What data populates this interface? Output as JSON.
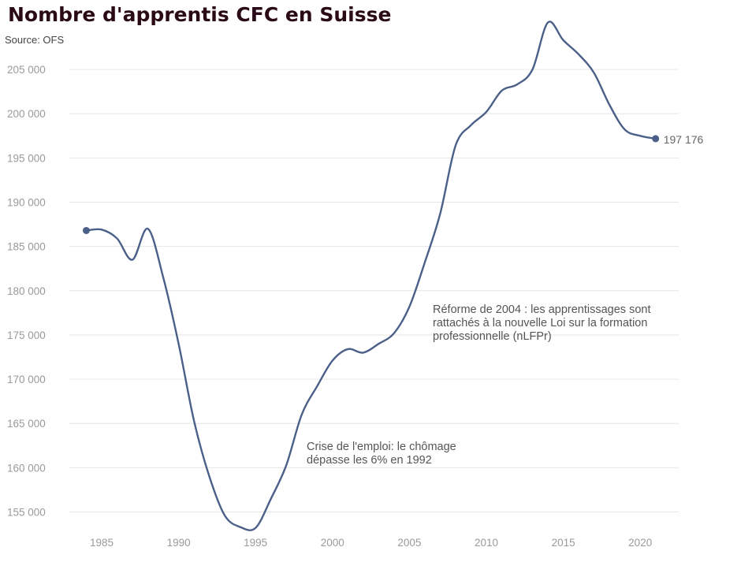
{
  "header": {
    "title": "Nombre d'apprentis CFC en Suisse",
    "source": "Source: OFS"
  },
  "chart_data": {
    "type": "line",
    "title": "Nombre d'apprentis CFC en Suisse",
    "subtitle": "Source: OFS",
    "xlabel": "",
    "ylabel": "",
    "xlim": [
      1982.9,
      2022.5
    ],
    "ylim": [
      153000,
      207500
    ],
    "x_ticks": [
      1985,
      1990,
      1995,
      2000,
      2005,
      2010,
      2015,
      2020
    ],
    "y_ticks": [
      155000,
      160000,
      165000,
      170000,
      175000,
      180000,
      185000,
      190000,
      195000,
      200000,
      205000
    ],
    "y_tick_labels": [
      "155 000",
      "160 000",
      "165 000",
      "170 000",
      "175 000",
      "180 000",
      "185 000",
      "190 000",
      "195 000",
      "200 000",
      "205 000"
    ],
    "grid": "horizontal",
    "line_color": "#4b6088",
    "grid_color": "#e6e6e6",
    "series": [
      {
        "x": [
          1984,
          1985,
          1986,
          1987,
          1988,
          1989,
          1990,
          1991,
          1992,
          1993,
          1994,
          1995,
          1996,
          1997,
          1998,
          1999,
          2000,
          2001,
          2002,
          2003,
          2004,
          2005,
          2006,
          2007,
          2008,
          2009,
          2010,
          2011,
          2012,
          2013,
          2014,
          2015,
          2016,
          2017,
          2018,
          2019,
          2020,
          2021
        ],
        "y": [
          186800,
          186900,
          185900,
          183500,
          187000,
          181500,
          174000,
          165300,
          159000,
          154600,
          153300,
          153200,
          156500,
          160300,
          166000,
          169200,
          172100,
          173400,
          173000,
          174000,
          175200,
          178200,
          183200,
          188700,
          196400,
          198700,
          200200,
          202600,
          203300,
          205000,
          210300,
          208300,
          206700,
          204600,
          201000,
          198200,
          197500,
          197176
        ]
      }
    ],
    "end_label": "197 176",
    "annotations": [
      {
        "lines": [
          "Crise de l'emploi: le chômage",
          "dépasse les 6% en 1992"
        ]
      },
      {
        "lines": [
          "Réforme de 2004 : les apprentissages sont",
          "rattachés à la nouvelle Loi sur la formation",
          "professionnelle (nLFPr)"
        ]
      }
    ]
  }
}
